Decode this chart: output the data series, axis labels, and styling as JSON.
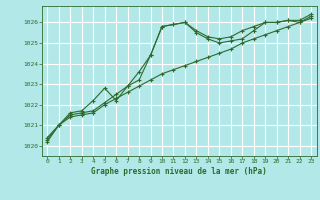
{
  "background_color": "#b2e8e8",
  "grid_color": "#ffffff",
  "line_color": "#2d6a2d",
  "marker_color": "#2d6a2d",
  "title": "Graphe pression niveau de la mer (hPa)",
  "ylim": [
    1019.5,
    1026.8
  ],
  "xlim": [
    -0.5,
    23.5
  ],
  "yticks": [
    1020,
    1021,
    1022,
    1023,
    1024,
    1025,
    1026
  ],
  "xticks": [
    0,
    1,
    2,
    3,
    4,
    5,
    6,
    7,
    8,
    9,
    10,
    11,
    12,
    13,
    14,
    15,
    16,
    17,
    18,
    19,
    20,
    21,
    22,
    23
  ],
  "line1_x": [
    0,
    1,
    2,
    3,
    4,
    5,
    6,
    7,
    8,
    9,
    10,
    11,
    12,
    13,
    14,
    15,
    16,
    17,
    18,
    19,
    20,
    21,
    22,
    23
  ],
  "line1_y": [
    1020.2,
    1021.0,
    1021.5,
    1021.6,
    1021.7,
    1022.1,
    1022.5,
    1022.9,
    1023.2,
    1024.4,
    1025.8,
    1025.9,
    1026.0,
    1025.5,
    1025.2,
    1025.0,
    1025.1,
    1025.2,
    1025.6,
    1026.0,
    1026.0,
    1026.1,
    1026.0,
    1026.3
  ],
  "line2_x": [
    0,
    1,
    2,
    3,
    4,
    5,
    6,
    7,
    8,
    9,
    10,
    11,
    12,
    13,
    14,
    15,
    16,
    17,
    18,
    19,
    20,
    21,
    22,
    23
  ],
  "line2_y": [
    1020.4,
    1021.0,
    1021.4,
    1021.5,
    1021.6,
    1022.0,
    1022.3,
    1022.6,
    1022.9,
    1023.2,
    1023.5,
    1023.7,
    1023.9,
    1024.1,
    1024.3,
    1024.5,
    1024.7,
    1025.0,
    1025.2,
    1025.4,
    1025.6,
    1025.8,
    1026.0,
    1026.2
  ],
  "line3_x": [
    0,
    1,
    2,
    3,
    4,
    5,
    6,
    7,
    8,
    9,
    10,
    11,
    12,
    13,
    14,
    15,
    16,
    17,
    18,
    19,
    20,
    21,
    22,
    23
  ],
  "line3_y": [
    1020.3,
    1021.0,
    1021.6,
    1021.7,
    1022.2,
    1022.8,
    1022.2,
    1022.9,
    1023.6,
    1024.4,
    1025.8,
    1025.9,
    1026.0,
    1025.6,
    1025.3,
    1025.2,
    1025.3,
    1025.6,
    1025.8,
    1026.0,
    1026.0,
    1026.1,
    1026.1,
    1026.4
  ]
}
